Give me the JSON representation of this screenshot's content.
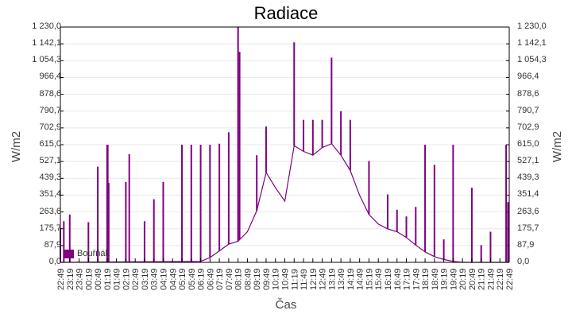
{
  "chart_data": {
    "type": "line",
    "title": "Radiace",
    "xlabel": "Čas",
    "ylabel": "W/m2",
    "ylim": [
      0,
      1230
    ],
    "grid": true,
    "legend_position": "bottom-left inside",
    "y_ticks": [
      "1 230,0",
      "1 142,1",
      "1 054,3",
      "966,4",
      "878,6",
      "790,7",
      "702,9",
      "615,0",
      "527,1",
      "439,3",
      "351,4",
      "263,6",
      "175,7",
      "87,9",
      "0,0"
    ],
    "x_ticks": [
      "22:49",
      "23:19",
      "23:49",
      "00:19",
      "00:49",
      "01:19",
      "01:49",
      "02:19",
      "02:49",
      "03:19",
      "03:49",
      "04:19",
      "04:49",
      "05:19",
      "05:49",
      "06:19",
      "06:49",
      "07:19",
      "07:49",
      "08:19",
      "08:49",
      "09:19",
      "09:49",
      "10:19",
      "10:49",
      "11:19",
      "11:49",
      "12:19",
      "12:49",
      "13:19",
      "13:49",
      "14:19",
      "14:49",
      "15:19",
      "15:49",
      "16:19",
      "16:49",
      "17:19",
      "17:49",
      "18:19",
      "18:49",
      "19:19",
      "19:49",
      "20:19",
      "20:49",
      "21:19",
      "21:49",
      "22:19",
      "22:49"
    ],
    "series": [
      {
        "name": "Bouřňák",
        "color": "#800080",
        "baseline_x": [
          "22:49",
          "06:19",
          "06:49",
          "07:19",
          "07:49",
          "08:19",
          "08:49",
          "09:19",
          "09:49",
          "10:19",
          "10:49",
          "11:19",
          "11:49",
          "12:19",
          "12:49",
          "13:19",
          "13:49",
          "14:19",
          "14:49",
          "15:19",
          "15:49",
          "16:19",
          "16:49",
          "17:19",
          "17:49",
          "18:19",
          "18:49",
          "19:19",
          "19:49",
          "20:19",
          "22:49"
        ],
        "baseline_values": [
          0,
          5,
          25,
          60,
          95,
          110,
          160,
          270,
          470,
          390,
          320,
          610,
          580,
          560,
          600,
          620,
          560,
          480,
          350,
          250,
          200,
          175,
          160,
          130,
          90,
          55,
          30,
          15,
          5,
          0,
          0
        ],
        "spikes": [
          {
            "x": "22:49",
            "value": 180
          },
          {
            "x": "23:00",
            "value": 215
          },
          {
            "x": "23:19",
            "value": 250
          },
          {
            "x": "00:19",
            "value": 210
          },
          {
            "x": "00:49",
            "value": 500
          },
          {
            "x": "01:19",
            "value": 615
          },
          {
            "x": "01:21",
            "value": 615
          },
          {
            "x": "01:24",
            "value": 415
          },
          {
            "x": "02:19",
            "value": 420
          },
          {
            "x": "02:30",
            "value": 565
          },
          {
            "x": "03:19",
            "value": 215
          },
          {
            "x": "03:49",
            "value": 330
          },
          {
            "x": "04:19",
            "value": 420
          },
          {
            "x": "05:19",
            "value": 615
          },
          {
            "x": "05:49",
            "value": 615
          },
          {
            "x": "06:19",
            "value": 615
          },
          {
            "x": "06:49",
            "value": 615
          },
          {
            "x": "07:19",
            "value": 620
          },
          {
            "x": "07:49",
            "value": 680
          },
          {
            "x": "08:19",
            "value": 1230
          },
          {
            "x": "08:24",
            "value": 1100
          },
          {
            "x": "09:19",
            "value": 560
          },
          {
            "x": "09:49",
            "value": 710
          },
          {
            "x": "11:19",
            "value": 1150
          },
          {
            "x": "11:49",
            "value": 745
          },
          {
            "x": "12:19",
            "value": 745
          },
          {
            "x": "12:49",
            "value": 745
          },
          {
            "x": "13:19",
            "value": 1070
          },
          {
            "x": "13:49",
            "value": 790
          },
          {
            "x": "14:19",
            "value": 745
          },
          {
            "x": "15:19",
            "value": 530
          },
          {
            "x": "16:19",
            "value": 355
          },
          {
            "x": "16:49",
            "value": 275
          },
          {
            "x": "17:19",
            "value": 240
          },
          {
            "x": "17:49",
            "value": 290
          },
          {
            "x": "18:19",
            "value": 615
          },
          {
            "x": "18:49",
            "value": 510
          },
          {
            "x": "19:19",
            "value": 120
          },
          {
            "x": "19:49",
            "value": 615
          },
          {
            "x": "20:49",
            "value": 390
          },
          {
            "x": "21:19",
            "value": 90
          },
          {
            "x": "21:49",
            "value": 160
          },
          {
            "x": "22:39",
            "value": 615
          },
          {
            "x": "22:45",
            "value": 315
          }
        ]
      }
    ]
  },
  "legend": {
    "label": "Bouřňák",
    "swatch_color": "#800080"
  }
}
